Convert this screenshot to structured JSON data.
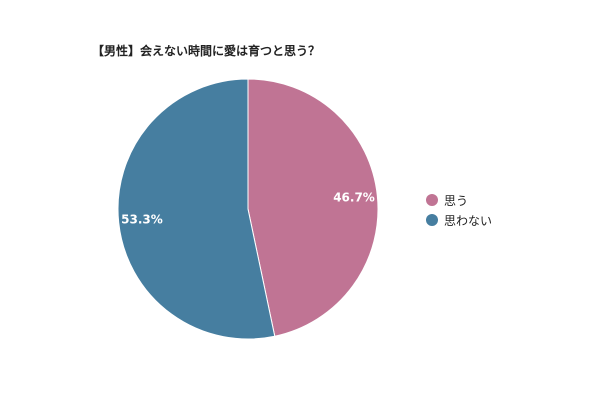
{
  "chart_data": {
    "type": "pie",
    "title": "【男性】会えない時間に愛は育つと思う？",
    "categories": [
      "思う",
      "思わない"
    ],
    "values": [
      46.7,
      53.3
    ],
    "labels": [
      "46.7%",
      "53.3%"
    ],
    "colors": [
      "#c07494",
      "#467ea0"
    ],
    "legend_position": "right",
    "start_angle": "top, clockwise"
  }
}
